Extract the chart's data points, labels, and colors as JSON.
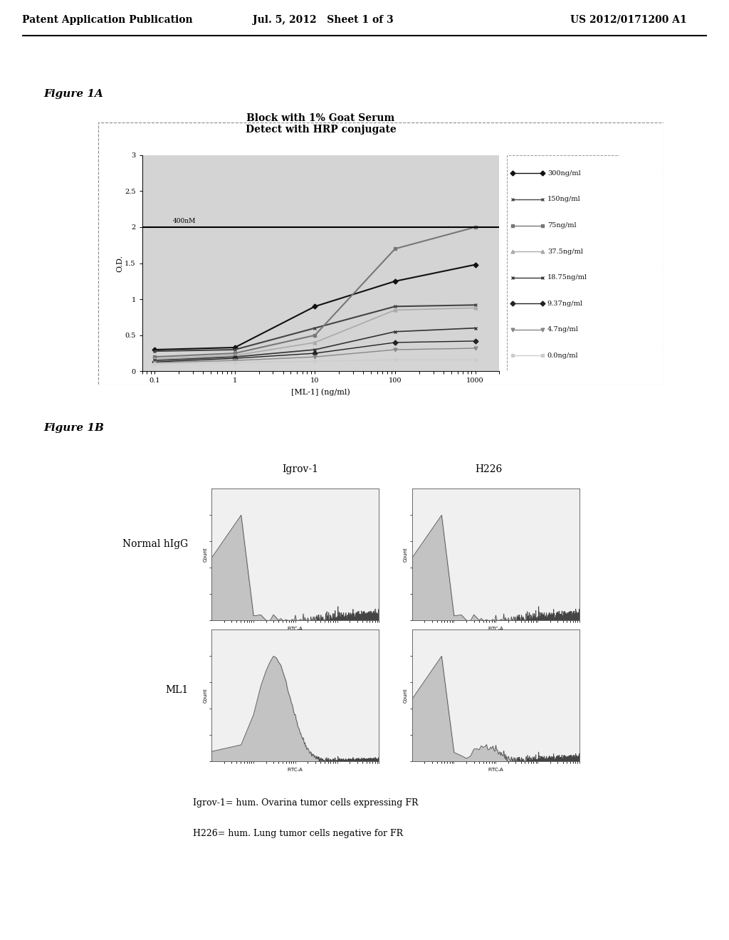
{
  "header_left": "Patent Application Publication",
  "header_mid": "Jul. 5, 2012   Sheet 1 of 3",
  "header_right": "US 2012/0171200 A1",
  "fig1a_label": "Figure 1A",
  "fig1b_label": "Figure 1B",
  "chart_title_line1": "Block with 1% Goat Serum",
  "chart_title_line2": "Detect with HRP conjugate",
  "ylabel": "O.D.",
  "xlabel": "[ML-1] (ng/ml)",
  "hline_label": "400nM",
  "hline_y": 2.0,
  "ylim": [
    0,
    3
  ],
  "yticks": [
    0,
    0.5,
    1,
    1.5,
    2,
    2.5,
    3
  ],
  "xtick_labels": [
    "0.1",
    "1",
    "10",
    "100",
    "1000"
  ],
  "xtick_vals": [
    0.1,
    1,
    10,
    100,
    1000
  ],
  "series": [
    {
      "label": "300ng/ml",
      "x": [
        0.1,
        1,
        10,
        100,
        1000
      ],
      "y": [
        0.3,
        0.33,
        0.9,
        1.25,
        1.48
      ],
      "marker": "D",
      "color": "#111111",
      "lw": 1.5
    },
    {
      "label": "150ng/ml",
      "x": [
        0.1,
        1,
        10,
        100,
        1000
      ],
      "y": [
        0.28,
        0.3,
        0.6,
        0.9,
        0.92
      ],
      "marker": "x",
      "color": "#444444",
      "lw": 1.5
    },
    {
      "label": "75ng/ml",
      "x": [
        0.1,
        1,
        10,
        100,
        1000
      ],
      "y": [
        0.2,
        0.25,
        0.5,
        1.7,
        2.0
      ],
      "marker": "s",
      "color": "#777777",
      "lw": 1.5
    },
    {
      "label": "37.5ng/ml",
      "x": [
        0.1,
        1,
        10,
        100,
        1000
      ],
      "y": [
        0.17,
        0.22,
        0.4,
        0.85,
        0.88
      ],
      "marker": "^",
      "color": "#aaaaaa",
      "lw": 1.2
    },
    {
      "label": "18.75ng/ml",
      "x": [
        0.1,
        1,
        10,
        100,
        1000
      ],
      "y": [
        0.15,
        0.2,
        0.3,
        0.55,
        0.6
      ],
      "marker": "x",
      "color": "#333333",
      "lw": 1.2
    },
    {
      "label": "9.37ng/ml",
      "x": [
        0.1,
        1,
        10,
        100,
        1000
      ],
      "y": [
        0.13,
        0.18,
        0.25,
        0.4,
        0.42
      ],
      "marker": "D",
      "color": "#222222",
      "lw": 1.0
    },
    {
      "label": "4.7ng/ml",
      "x": [
        0.1,
        1,
        10,
        100,
        1000
      ],
      "y": [
        0.12,
        0.15,
        0.2,
        0.3,
        0.32
      ],
      "marker": "v",
      "color": "#888888",
      "lw": 1.0
    },
    {
      "label": "0.0ng/ml",
      "x": [
        0.1,
        1,
        10,
        100,
        1000
      ],
      "y": [
        0.1,
        0.12,
        0.14,
        0.16,
        0.16
      ],
      "marker": "s",
      "color": "#cccccc",
      "lw": 1.0
    }
  ],
  "flow_rows": [
    "Normal hIgG",
    "ML1"
  ],
  "flow_cols": [
    "Igrov-1",
    "H226"
  ],
  "caption_line1": "Igrov-1= hum. Ovarina tumor cells expressing FR",
  "caption_line2": "H226= hum. Lung tumor cells negative for FR",
  "bg_color": "#ffffff",
  "chart_bg": "#d4d4d4",
  "panel_bg": "#e8e8e8"
}
